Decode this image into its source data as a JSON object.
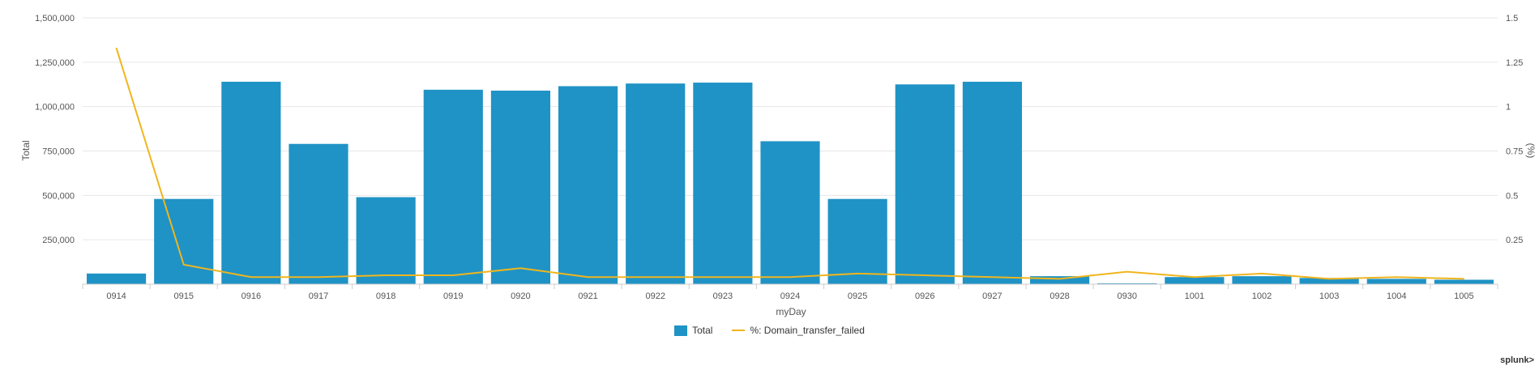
{
  "chart_data": {
    "type": "bar",
    "xlabel": "myDay",
    "ylabel": "Total",
    "y2label": "(%)",
    "ylim": [
      0,
      1500000
    ],
    "y2lim": [
      0,
      1.5
    ],
    "yticks": [
      "1,500,000",
      "1,250,000",
      "1,000,000",
      "750,000",
      "500,000",
      "250,000"
    ],
    "y2ticks": [
      "1.5",
      "1.25",
      "1",
      "0.75",
      "0.5",
      "0.25"
    ],
    "grid": true,
    "legend_position": "bottom",
    "categories": [
      "0914",
      "0915",
      "0916",
      "0917",
      "0918",
      "0919",
      "0920",
      "0921",
      "0922",
      "0923",
      "0924",
      "0925",
      "0926",
      "0927",
      "0928",
      "0930",
      "1001",
      "1002",
      "1003",
      "1004",
      "1005"
    ],
    "series": [
      {
        "name": "Total",
        "kind": "bar",
        "axis": "left",
        "color": "#1f93c5",
        "values": [
          60000,
          480000,
          1140000,
          790000,
          490000,
          1095000,
          1090000,
          1115000,
          1130000,
          1135000,
          805000,
          480000,
          1125000,
          1140000,
          45000,
          5000,
          40000,
          45000,
          35000,
          30000,
          25000
        ]
      },
      {
        "name": "%: Domain_transfer_failed",
        "kind": "line",
        "axis": "right",
        "color": "#f0b51e",
        "values": [
          1.33,
          0.11,
          0.04,
          0.04,
          0.05,
          0.05,
          0.09,
          0.04,
          0.04,
          0.04,
          0.04,
          0.06,
          0.05,
          0.04,
          0.03,
          0.07,
          0.04,
          0.06,
          0.03,
          0.04,
          0.03
        ]
      }
    ]
  },
  "brand": "splunk>"
}
